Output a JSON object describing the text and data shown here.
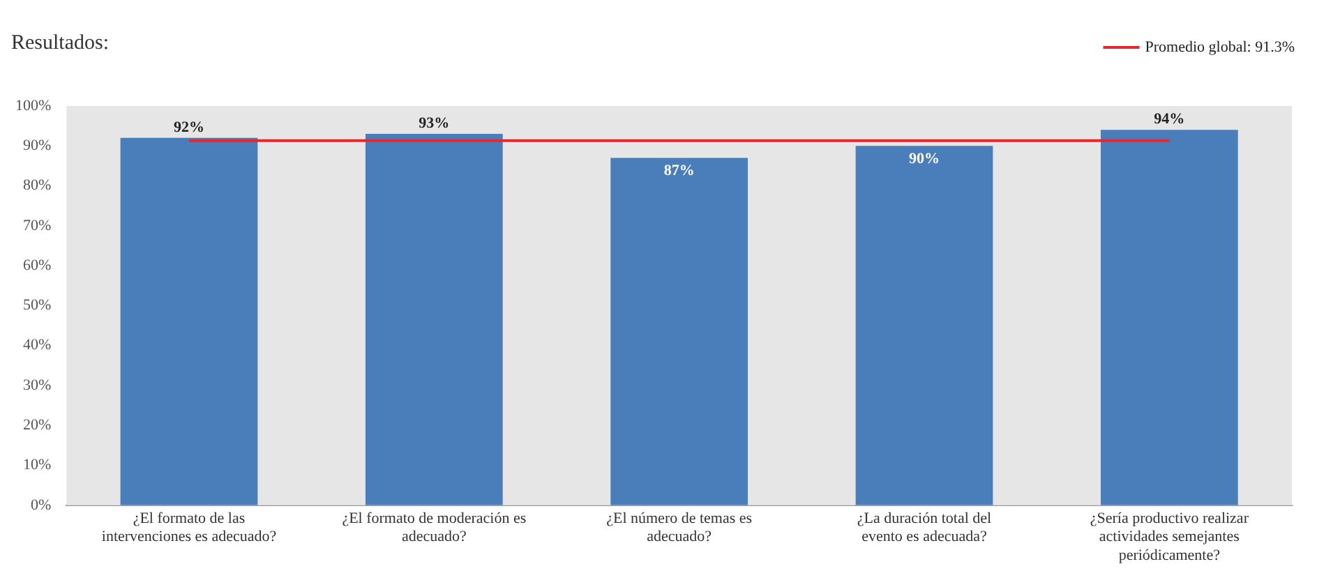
{
  "chart_data": {
    "type": "bar",
    "title": "Resultados:",
    "categories": [
      "¿El formato de las intervenciones es adecuado?",
      "¿El formato de moderación es adecuado?",
      "¿El número de temas es adecuado?",
      "¿La duración total del evento es adecuada?",
      "¿Sería productivo realizar actividades semejantes periódicamente?"
    ],
    "values": [
      92,
      93,
      87,
      90,
      94
    ],
    "value_labels": [
      "92%",
      "93%",
      "87%",
      "90%",
      "94%"
    ],
    "color": "#4a7ebb",
    "ylim": [
      0,
      100
    ],
    "yticks": [
      {
        "value": 0,
        "label": "0%"
      },
      {
        "value": 10,
        "label": "10%"
      },
      {
        "value": 20,
        "label": "20%"
      },
      {
        "value": 30,
        "label": "30%"
      },
      {
        "value": 40,
        "label": "40%"
      },
      {
        "value": 50,
        "label": "50%"
      },
      {
        "value": 60,
        "label": "60%"
      },
      {
        "value": 70,
        "label": "70%"
      },
      {
        "value": 80,
        "label": "80%"
      },
      {
        "value": 90,
        "label": "90%"
      },
      {
        "value": 100,
        "label": "100%"
      }
    ],
    "ref_lines": [
      {
        "axis": "y",
        "value": 91.3,
        "label": "Promedio global: 91.3%",
        "color": "#e8262b"
      }
    ],
    "grid": false,
    "legend": "top right"
  }
}
